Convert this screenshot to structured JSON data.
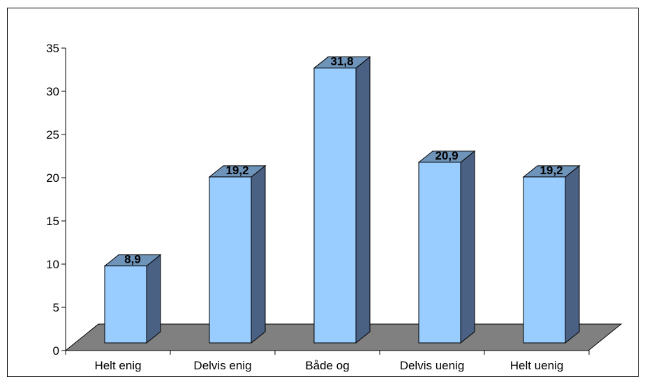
{
  "chart_data": {
    "type": "bar",
    "categories": [
      "Helt enig",
      "Delvis enig",
      "Både og",
      "Delvis uenig",
      "Helt uenig"
    ],
    "values": [
      8.9,
      19.2,
      31.8,
      20.9,
      19.2
    ],
    "data_labels": [
      "8,9",
      "19,2",
      "31,8",
      "20,9",
      "19,2"
    ],
    "title": "",
    "xlabel": "",
    "ylabel": "",
    "ylim": [
      0,
      35
    ],
    "yticks": [
      0,
      5,
      10,
      15,
      20,
      25,
      30,
      35
    ],
    "ytick_labels": [
      "0",
      "5",
      "10",
      "15",
      "20",
      "25",
      "30",
      "35"
    ],
    "grid": false,
    "legend": "none",
    "style": "3d-column"
  },
  "colors": {
    "bar_front": "#99ccff",
    "bar_top": "#6f94b9",
    "bar_side": "#4a6183",
    "floor": "#808080",
    "axis": "#000000"
  }
}
